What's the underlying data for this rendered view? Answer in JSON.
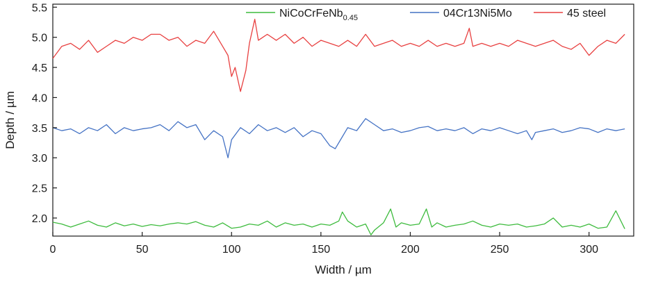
{
  "chart_data": {
    "type": "line",
    "title": "",
    "xlabel": "Width / µm",
    "ylabel": "Depth / µm",
    "xlim": [
      0,
      325
    ],
    "ylim": [
      1.7,
      5.55
    ],
    "xticks": [
      0,
      50,
      100,
      150,
      200,
      250,
      300
    ],
    "yticks": [
      2.0,
      2.5,
      3.0,
      3.5,
      4.0,
      4.5,
      5.0,
      5.5
    ],
    "xtick_labels": [
      "0",
      "50",
      "100",
      "150",
      "200",
      "250",
      "300"
    ],
    "ytick_labels": [
      "2.0",
      "2.5",
      "3.0",
      "3.5",
      "4.0",
      "4.5",
      "5.0",
      "5.5"
    ],
    "grid": false,
    "legend_position": "top-right",
    "series": [
      {
        "name": "NiCoCrFeNb",
        "name_subscript": "0.45",
        "color": "#3dbb3d",
        "x": [
          0,
          5,
          10,
          15,
          20,
          25,
          30,
          35,
          40,
          45,
          50,
          55,
          60,
          65,
          70,
          75,
          80,
          85,
          90,
          95,
          100,
          105,
          110,
          115,
          120,
          125,
          130,
          135,
          140,
          145,
          150,
          155,
          160,
          162,
          165,
          170,
          175,
          178,
          180,
          185,
          189,
          192,
          195,
          200,
          205,
          209,
          212,
          215,
          220,
          225,
          230,
          235,
          240,
          245,
          250,
          255,
          260,
          265,
          270,
          275,
          280,
          285,
          290,
          295,
          300,
          305,
          310,
          315,
          320
        ],
        "y": [
          1.93,
          1.9,
          1.85,
          1.9,
          1.95,
          1.88,
          1.85,
          1.92,
          1.87,
          1.9,
          1.86,
          1.89,
          1.87,
          1.9,
          1.92,
          1.9,
          1.94,
          1.88,
          1.85,
          1.92,
          1.83,
          1.85,
          1.9,
          1.88,
          1.95,
          1.85,
          1.92,
          1.88,
          1.9,
          1.85,
          1.9,
          1.88,
          1.95,
          2.1,
          1.95,
          1.85,
          1.9,
          1.72,
          1.8,
          1.92,
          2.15,
          1.85,
          1.92,
          1.88,
          1.9,
          2.15,
          1.85,
          1.92,
          1.85,
          1.88,
          1.9,
          1.95,
          1.88,
          1.85,
          1.9,
          1.88,
          1.9,
          1.85,
          1.87,
          1.9,
          2.0,
          1.85,
          1.88,
          1.85,
          1.9,
          1.83,
          1.85,
          2.12,
          1.82
        ]
      },
      {
        "name": "04Cr13Ni5Mo",
        "color": "#4472c4",
        "x": [
          0,
          5,
          10,
          15,
          20,
          25,
          30,
          35,
          40,
          45,
          50,
          55,
          60,
          65,
          70,
          75,
          80,
          85,
          90,
          95,
          98,
          100,
          105,
          110,
          115,
          120,
          125,
          130,
          135,
          140,
          145,
          150,
          155,
          158,
          162,
          165,
          170,
          175,
          180,
          185,
          190,
          195,
          200,
          205,
          210,
          215,
          220,
          225,
          230,
          235,
          240,
          245,
          250,
          255,
          260,
          265,
          268,
          270,
          275,
          280,
          285,
          290,
          295,
          300,
          305,
          310,
          315,
          320
        ],
        "y": [
          3.5,
          3.45,
          3.48,
          3.4,
          3.5,
          3.45,
          3.55,
          3.4,
          3.5,
          3.45,
          3.48,
          3.5,
          3.55,
          3.45,
          3.6,
          3.5,
          3.55,
          3.3,
          3.45,
          3.35,
          3.0,
          3.3,
          3.5,
          3.4,
          3.55,
          3.45,
          3.5,
          3.42,
          3.5,
          3.35,
          3.45,
          3.4,
          3.2,
          3.15,
          3.35,
          3.5,
          3.45,
          3.65,
          3.55,
          3.45,
          3.48,
          3.42,
          3.45,
          3.5,
          3.52,
          3.45,
          3.48,
          3.45,
          3.5,
          3.4,
          3.48,
          3.45,
          3.5,
          3.45,
          3.4,
          3.45,
          3.3,
          3.42,
          3.45,
          3.48,
          3.42,
          3.45,
          3.5,
          3.48,
          3.42,
          3.48,
          3.45,
          3.48
        ]
      },
      {
        "name": "45 steel",
        "color": "#e84040",
        "x": [
          0,
          5,
          10,
          15,
          20,
          25,
          30,
          35,
          40,
          45,
          50,
          55,
          60,
          65,
          70,
          75,
          80,
          85,
          90,
          95,
          98,
          100,
          102,
          105,
          108,
          110,
          113,
          115,
          120,
          125,
          130,
          135,
          140,
          145,
          150,
          155,
          160,
          165,
          170,
          175,
          180,
          185,
          190,
          195,
          200,
          205,
          210,
          215,
          220,
          225,
          230,
          233,
          235,
          240,
          245,
          250,
          255,
          260,
          265,
          270,
          275,
          280,
          285,
          290,
          295,
          300,
          305,
          310,
          315,
          320
        ],
        "y": [
          4.65,
          4.85,
          4.9,
          4.8,
          4.95,
          4.75,
          4.85,
          4.95,
          4.9,
          5.0,
          4.95,
          5.05,
          5.05,
          4.95,
          5.0,
          4.85,
          4.95,
          4.9,
          5.1,
          4.85,
          4.7,
          4.35,
          4.5,
          4.1,
          4.45,
          4.9,
          5.3,
          4.95,
          5.05,
          4.95,
          5.05,
          4.9,
          5.0,
          4.85,
          4.95,
          4.9,
          4.85,
          4.95,
          4.85,
          5.05,
          4.85,
          4.9,
          4.95,
          4.85,
          4.9,
          4.85,
          4.95,
          4.85,
          4.9,
          4.85,
          4.9,
          5.15,
          4.85,
          4.9,
          4.85,
          4.9,
          4.85,
          4.95,
          4.9,
          4.85,
          4.9,
          4.95,
          4.85,
          4.8,
          4.9,
          4.7,
          4.85,
          4.95,
          4.9,
          5.05
        ]
      }
    ]
  }
}
